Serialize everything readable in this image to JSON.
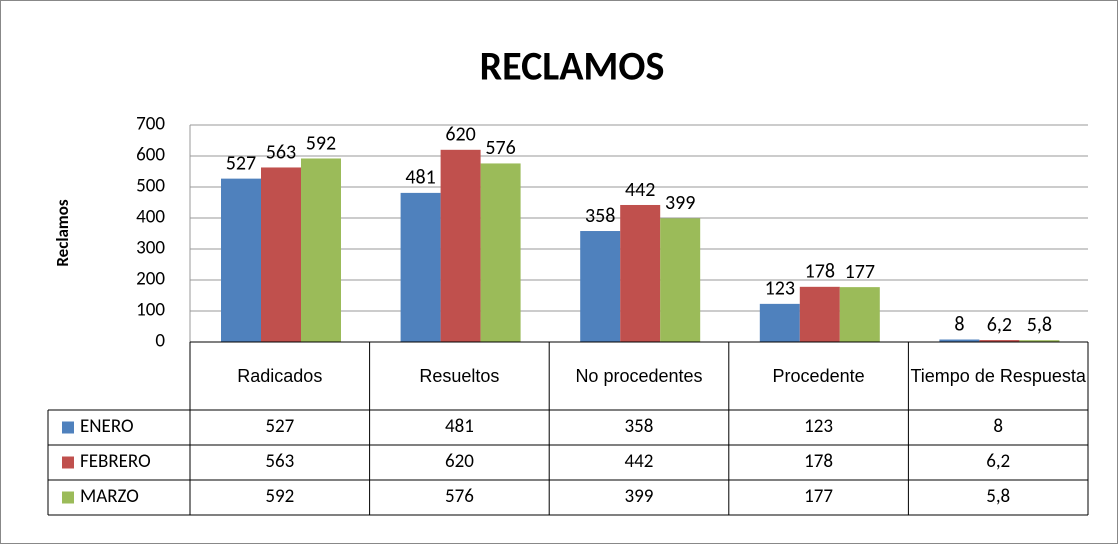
{
  "chart_data": {
    "type": "bar",
    "title": "RECLAMOS",
    "y_label": "Reclamos",
    "categories": [
      "Radicados",
      "Resueltos",
      "No procedentes",
      "Procedente",
      "Tiempo de Respuesta"
    ],
    "series": [
      {
        "name": "ENERO",
        "color": "#4f81bd",
        "values": [
          527,
          481,
          358,
          123,
          8
        ]
      },
      {
        "name": "FEBRERO",
        "color": "#c0504d",
        "values": [
          563,
          620,
          442,
          178,
          6.2
        ],
        "value_labels": [
          "563",
          "620",
          "442",
          "178",
          "6,2"
        ]
      },
      {
        "name": "MARZO",
        "color": "#9bbb59",
        "values": [
          592,
          576,
          399,
          177,
          5.8
        ],
        "value_labels": [
          "592",
          "576",
          "399",
          "177",
          "5,8"
        ]
      }
    ],
    "ylim": [
      0,
      700
    ],
    "yticks": [
      0,
      100,
      200,
      300,
      400,
      500,
      600,
      700
    ],
    "grid": true,
    "data_table": true
  }
}
